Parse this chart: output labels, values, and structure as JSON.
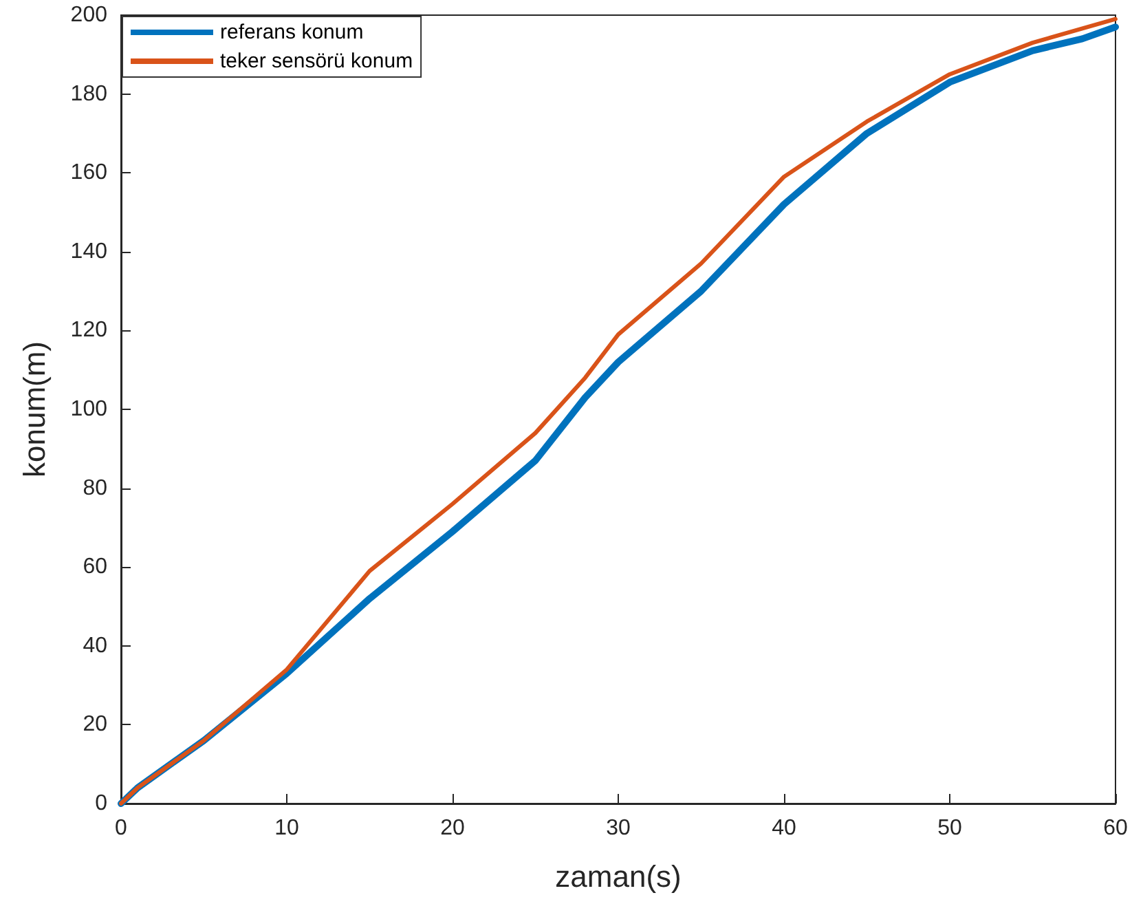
{
  "chart_data": {
    "type": "line",
    "xlabel": "zaman(s)",
    "ylabel": "konum(m)",
    "xlim": [
      0,
      60
    ],
    "xticks": [
      0,
      10,
      20,
      30,
      40,
      50,
      60
    ],
    "ylim": [
      0,
      200
    ],
    "yticks": [
      0,
      20,
      40,
      60,
      80,
      100,
      120,
      140,
      160,
      180,
      200
    ],
    "grid": false,
    "legend": "top left",
    "marker": "none",
    "line_style": "solid",
    "series": [
      {
        "name": "referans konum",
        "color": "#0072bd",
        "x": [
          0,
          1,
          5,
          10,
          15,
          20,
          25,
          28,
          30,
          35,
          40,
          45,
          50,
          55,
          58,
          60
        ],
        "values": [
          0,
          4,
          16,
          33,
          52,
          69,
          87,
          103,
          112,
          130,
          152,
          170,
          183,
          191,
          194,
          197
        ]
      },
      {
        "name": "teker sensörü konum",
        "color": "#d95319",
        "x": [
          0,
          1,
          5,
          10,
          15,
          20,
          25,
          28,
          30,
          35,
          40,
          45,
          50,
          55,
          60
        ],
        "values": [
          0,
          4,
          16,
          34,
          59,
          76,
          94,
          108,
          119,
          137,
          159,
          173,
          185,
          193,
          199
        ]
      }
    ]
  }
}
